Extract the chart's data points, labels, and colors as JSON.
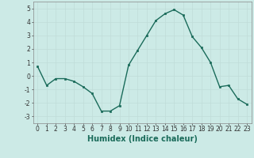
{
  "x": [
    0,
    1,
    2,
    3,
    4,
    5,
    6,
    7,
    8,
    9,
    10,
    11,
    12,
    13,
    14,
    15,
    16,
    17,
    18,
    19,
    20,
    21,
    22,
    23
  ],
  "y": [
    0.7,
    -0.7,
    -0.2,
    -0.2,
    -0.4,
    -0.8,
    -1.3,
    -2.6,
    -2.6,
    -2.2,
    0.8,
    1.9,
    3.0,
    4.1,
    4.6,
    4.9,
    4.5,
    2.9,
    2.1,
    1.0,
    -0.8,
    -0.7,
    -1.7,
    -2.1
  ],
  "line_color": "#1a6b5a",
  "marker": "s",
  "markersize": 2.0,
  "linewidth": 1.0,
  "xlabel": "Humidex (Indice chaleur)",
  "xlim": [
    -0.5,
    23.5
  ],
  "ylim": [
    -3.5,
    5.5
  ],
  "yticks": [
    -3,
    -2,
    -1,
    0,
    1,
    2,
    3,
    4,
    5
  ],
  "xticks": [
    0,
    1,
    2,
    3,
    4,
    5,
    6,
    7,
    8,
    9,
    10,
    11,
    12,
    13,
    14,
    15,
    16,
    17,
    18,
    19,
    20,
    21,
    22,
    23
  ],
  "xtick_labels": [
    "0",
    "1",
    "2",
    "3",
    "4",
    "5",
    "6",
    "7",
    "8",
    "9",
    "10",
    "11",
    "12",
    "13",
    "14",
    "15",
    "16",
    "17",
    "18",
    "19",
    "20",
    "21",
    "22",
    "23"
  ],
  "bg_color": "#cceae6",
  "grid_color": "#c0dcd8",
  "tick_fontsize": 5.5,
  "xlabel_fontsize": 7.0,
  "xlabel_fontweight": "bold",
  "xlabel_color": "#1a6b5a"
}
